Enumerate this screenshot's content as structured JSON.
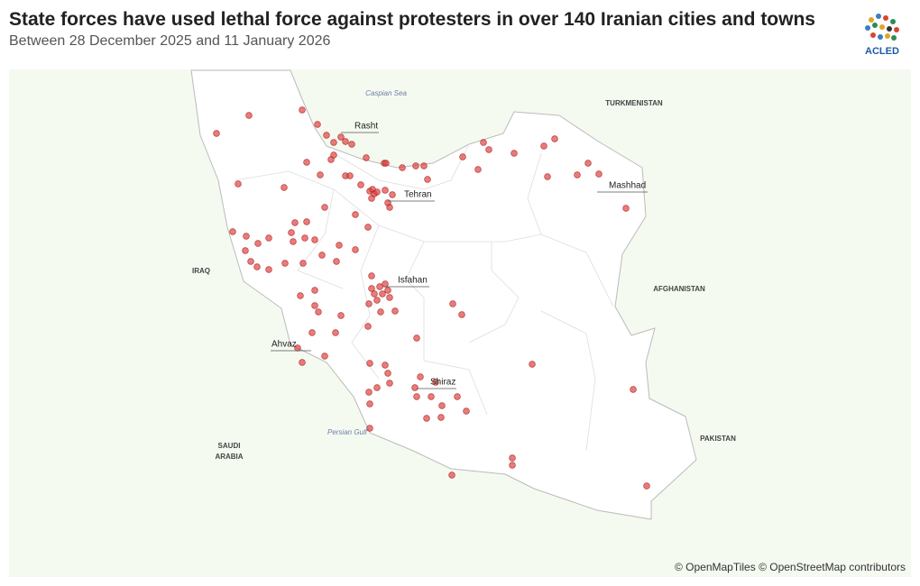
{
  "header": {
    "title": "State forces have used lethal force against protesters in over 140 Iranian cities and towns",
    "subtitle": "Between 28 December 2025 and 11 January 2026"
  },
  "logo": {
    "text": "ACLED"
  },
  "map": {
    "water": [
      "Caspian Sea",
      "Persian Gulf"
    ],
    "countries": [
      "TURKMENISTAN",
      "IRAQ",
      "AFGHANISTAN",
      "PAKISTAN",
      "SAUDI",
      "ARABIA"
    ],
    "cities": [
      "Rasht",
      "Tehran",
      "Mashhad",
      "Isfahan",
      "Ahvaz",
      "Shiraz"
    ]
  },
  "attribution": "© OpenMapTiles © OpenStreetMap contributors"
}
